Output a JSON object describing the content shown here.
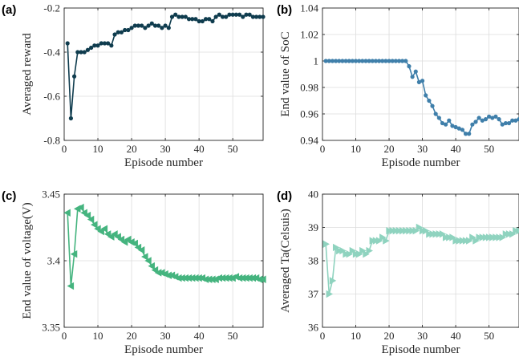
{
  "chart_data": [
    {
      "type": "line",
      "panel_label": "(a)",
      "title": "",
      "xlabel": "Episode number",
      "ylabel": "Averaged reward",
      "xlim": [
        0,
        59
      ],
      "ylim": [
        -0.8,
        -0.2
      ],
      "xticks": [
        0,
        10,
        20,
        30,
        40,
        50
      ],
      "yticks": [
        -0.8,
        -0.6,
        -0.4,
        -0.2
      ],
      "ytick_labels": [
        "-0.8",
        "-0.6",
        "-0.4",
        "-0.2"
      ],
      "grid": true,
      "color": "#0f3c4e",
      "marker": "circle",
      "series": [
        {
          "x": [
            1,
            2,
            3,
            4,
            5,
            6,
            7,
            8,
            9,
            10,
            11,
            12,
            13,
            14,
            15,
            16,
            17,
            18,
            19,
            20,
            21,
            22,
            23,
            24,
            25,
            26,
            27,
            28,
            29,
            30,
            31,
            32,
            33,
            34,
            35,
            36,
            37,
            38,
            39,
            40,
            41,
            42,
            43,
            44,
            45,
            46,
            47,
            48,
            49,
            50,
            51,
            52,
            53,
            54,
            55,
            56,
            57,
            58,
            59
          ],
          "values": [
            -0.36,
            -0.7,
            -0.51,
            -0.4,
            -0.4,
            -0.4,
            -0.39,
            -0.38,
            -0.37,
            -0.37,
            -0.36,
            -0.36,
            -0.36,
            -0.37,
            -0.32,
            -0.31,
            -0.31,
            -0.3,
            -0.3,
            -0.29,
            -0.28,
            -0.28,
            -0.28,
            -0.29,
            -0.28,
            -0.27,
            -0.28,
            -0.28,
            -0.29,
            -0.28,
            -0.29,
            -0.24,
            -0.23,
            -0.24,
            -0.24,
            -0.24,
            -0.25,
            -0.25,
            -0.25,
            -0.26,
            -0.26,
            -0.25,
            -0.25,
            -0.26,
            -0.24,
            -0.23,
            -0.24,
            -0.24,
            -0.23,
            -0.23,
            -0.23,
            -0.23,
            -0.24,
            -0.23,
            -0.23,
            -0.24,
            -0.24,
            -0.24,
            -0.24
          ]
        }
      ]
    },
    {
      "type": "line",
      "panel_label": "(b)",
      "title": "",
      "xlabel": "Episode number",
      "ylabel": "End value of SoC",
      "xlim": [
        0,
        59
      ],
      "ylim": [
        0.94,
        1.04
      ],
      "xticks": [
        0,
        10,
        20,
        30,
        40,
        50
      ],
      "yticks": [
        0.94,
        0.96,
        0.98,
        1.0,
        1.02,
        1.04
      ],
      "ytick_labels": [
        "0.94",
        "0.96",
        "0.98",
        "1",
        "1.02",
        "1.04"
      ],
      "grid": true,
      "color": "#3f7faa",
      "marker": "circle",
      "series": [
        {
          "x": [
            1,
            2,
            3,
            4,
            5,
            6,
            7,
            8,
            9,
            10,
            11,
            12,
            13,
            14,
            15,
            16,
            17,
            18,
            19,
            20,
            21,
            22,
            23,
            24,
            25,
            26,
            27,
            28,
            29,
            30,
            31,
            32,
            33,
            34,
            35,
            36,
            37,
            38,
            39,
            40,
            41,
            42,
            43,
            44,
            45,
            46,
            47,
            48,
            49,
            50,
            51,
            52,
            53,
            54,
            55,
            56,
            57,
            58,
            59
          ],
          "values": [
            1.0,
            1.0,
            1.0,
            1.0,
            1.0,
            1.0,
            1.0,
            1.0,
            1.0,
            1.0,
            1.0,
            1.0,
            1.0,
            1.0,
            1.0,
            1.0,
            1.0,
            1.0,
            1.0,
            1.0,
            1.0,
            1.0,
            1.0,
            1.0,
            1.0,
            0.996,
            0.988,
            0.992,
            0.984,
            0.985,
            0.974,
            0.97,
            0.966,
            0.96,
            0.957,
            0.953,
            0.952,
            0.955,
            0.951,
            0.95,
            0.949,
            0.948,
            0.945,
            0.945,
            0.952,
            0.954,
            0.957,
            0.955,
            0.956,
            0.958,
            0.957,
            0.958,
            0.956,
            0.952,
            0.953,
            0.953,
            0.955,
            0.955,
            0.956
          ]
        }
      ]
    },
    {
      "type": "line",
      "panel_label": "(c)",
      "title": "",
      "xlabel": "Episode number",
      "ylabel": "End value of voltage(V)",
      "xlim": [
        0,
        59
      ],
      "ylim": [
        3.35,
        3.45
      ],
      "xticks": [
        0,
        10,
        20,
        30,
        40,
        50
      ],
      "yticks": [
        3.35,
        3.4,
        3.45
      ],
      "ytick_labels": [
        "3.35",
        "3.4",
        "3.45"
      ],
      "grid": true,
      "color": "#45b47f",
      "marker": "triangle-left",
      "series": [
        {
          "x": [
            1,
            2,
            3,
            4,
            5,
            6,
            7,
            8,
            9,
            10,
            11,
            12,
            13,
            14,
            15,
            16,
            17,
            18,
            19,
            20,
            21,
            22,
            23,
            24,
            25,
            26,
            27,
            28,
            29,
            30,
            31,
            32,
            33,
            34,
            35,
            36,
            37,
            38,
            39,
            40,
            41,
            42,
            43,
            44,
            45,
            46,
            47,
            48,
            49,
            50,
            51,
            52,
            53,
            54,
            55,
            56,
            57,
            58,
            59
          ],
          "values": [
            3.436,
            3.381,
            3.405,
            3.439,
            3.44,
            3.436,
            3.434,
            3.431,
            3.427,
            3.424,
            3.422,
            3.424,
            3.42,
            3.418,
            3.42,
            3.418,
            3.416,
            3.414,
            3.416,
            3.414,
            3.413,
            3.41,
            3.408,
            3.403,
            3.4,
            3.396,
            3.393,
            3.391,
            3.391,
            3.39,
            3.389,
            3.389,
            3.388,
            3.387,
            3.387,
            3.387,
            3.387,
            3.387,
            3.387,
            3.387,
            3.387,
            3.386,
            3.386,
            3.386,
            3.386,
            3.387,
            3.387,
            3.387,
            3.387,
            3.387,
            3.388,
            3.387,
            3.387,
            3.387,
            3.387,
            3.387,
            3.387,
            3.386,
            3.386
          ]
        }
      ]
    },
    {
      "type": "line",
      "panel_label": "(d)",
      "title": "",
      "xlabel": "Episode number",
      "ylabel": "Averaged Ta(Celsuis)",
      "xlim": [
        0,
        59
      ],
      "ylim": [
        36,
        40
      ],
      "xticks": [
        0,
        10,
        20,
        30,
        40,
        50
      ],
      "yticks": [
        36,
        37,
        38,
        39,
        40
      ],
      "ytick_labels": [
        "36",
        "37",
        "38",
        "39",
        "40"
      ],
      "grid": true,
      "color": "#8fd3bf",
      "marker": "triangle-right",
      "series": [
        {
          "x": [
            1,
            2,
            3,
            4,
            5,
            6,
            7,
            8,
            9,
            10,
            11,
            12,
            13,
            14,
            15,
            16,
            17,
            18,
            19,
            20,
            21,
            22,
            23,
            24,
            25,
            26,
            27,
            28,
            29,
            30,
            31,
            32,
            33,
            34,
            35,
            36,
            37,
            38,
            39,
            40,
            41,
            42,
            43,
            44,
            45,
            46,
            47,
            48,
            49,
            50,
            51,
            52,
            53,
            54,
            55,
            56,
            57,
            58,
            59
          ],
          "values": [
            38.5,
            37.0,
            37.4,
            38.4,
            38.3,
            38.3,
            38.2,
            38.2,
            38.3,
            38.2,
            38.2,
            38.3,
            38.2,
            38.3,
            38.6,
            38.6,
            38.6,
            38.7,
            38.6,
            38.9,
            38.9,
            38.9,
            38.9,
            38.9,
            38.9,
            38.9,
            38.9,
            38.9,
            39.0,
            38.9,
            38.9,
            38.8,
            38.8,
            38.8,
            38.8,
            38.8,
            38.7,
            38.7,
            38.7,
            38.6,
            38.6,
            38.6,
            38.6,
            38.6,
            38.7,
            38.6,
            38.7,
            38.7,
            38.7,
            38.7,
            38.7,
            38.7,
            38.7,
            38.7,
            38.8,
            38.8,
            38.8,
            38.9,
            38.9
          ]
        }
      ]
    }
  ]
}
